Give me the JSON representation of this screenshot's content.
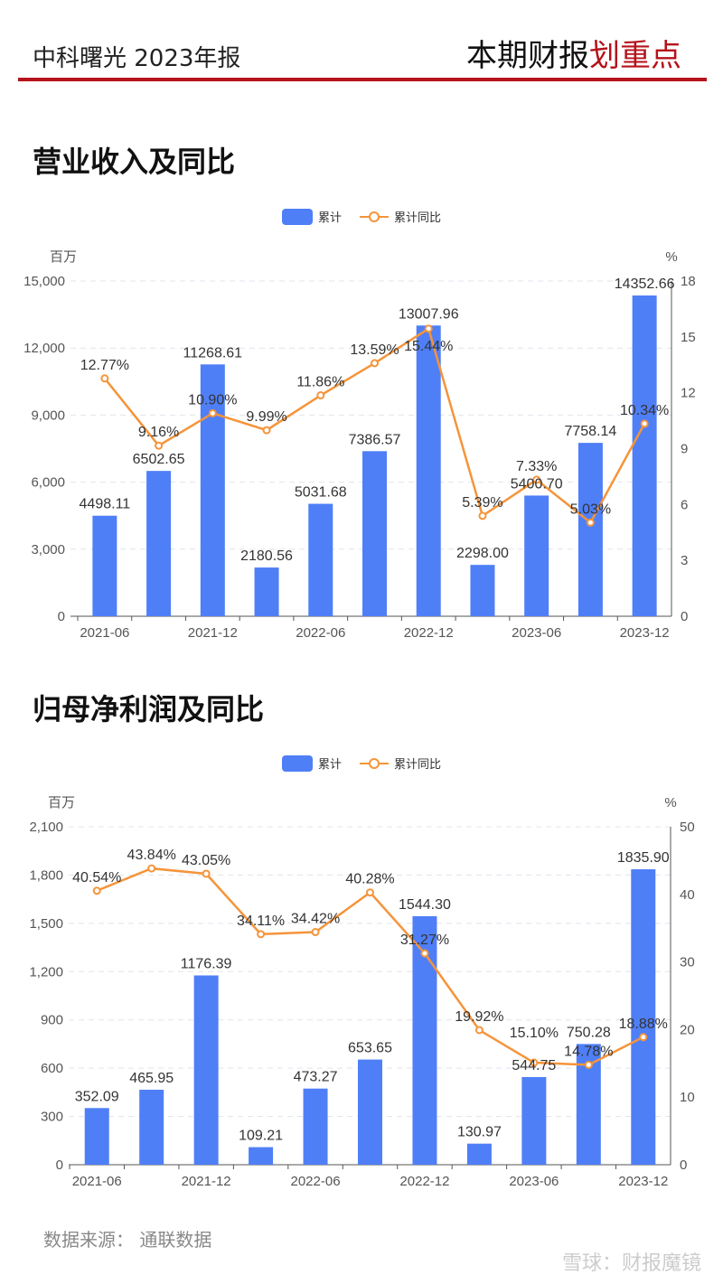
{
  "header": {
    "left_title": "中科曙光 2023年报",
    "right_title_main": "本期财报",
    "right_title_highlight": "划重点"
  },
  "sections": [
    {
      "title": "营业收入及同比"
    },
    {
      "title": "归母净利润及同比"
    }
  ],
  "footer": {
    "source": "数据来源： 通联数据",
    "watermark": "雪球：财报魔镜"
  },
  "colors": {
    "bar": "#4f7ff7",
    "line": "#f5943a",
    "accent": "#b5121b"
  },
  "chart_data": [
    {
      "type": "bar+line",
      "legend": [
        "累计",
        "累计同比"
      ],
      "legend_position": "top-center",
      "ylabel_left": "百万",
      "ylabel_right": "%",
      "categories": [
        "2021-06",
        "",
        "2021-12",
        "",
        "2022-06",
        "",
        "2022-12",
        "",
        "2023-06",
        "",
        "2023-12"
      ],
      "ylim_left": [
        0,
        15000
      ],
      "yticks_left": [
        "0",
        "3,000",
        "6,000",
        "9,000",
        "12,000",
        "15,000"
      ],
      "ylim_right": [
        0,
        18
      ],
      "yticks_right": [
        "0",
        "3",
        "6",
        "9",
        "12",
        "15",
        "18"
      ],
      "bars": {
        "name": "累计",
        "values": [
          4498.11,
          6502.65,
          11268.61,
          2180.56,
          5031.68,
          7386.57,
          13007.96,
          2298.0,
          5400.7,
          7758.14,
          14352.66
        ]
      },
      "line": {
        "name": "累计同比",
        "values": [
          12.77,
          9.16,
          10.9,
          9.99,
          11.86,
          13.59,
          15.44,
          5.39,
          7.33,
          5.03,
          10.34
        ]
      }
    },
    {
      "type": "bar+line",
      "legend": [
        "累计",
        "累计同比"
      ],
      "legend_position": "top-center",
      "ylabel_left": "百万",
      "ylabel_right": "%",
      "categories": [
        "2021-06",
        "",
        "2021-12",
        "",
        "2022-06",
        "",
        "2022-12",
        "",
        "2023-06",
        "",
        "2023-12"
      ],
      "ylim_left": [
        0,
        2100
      ],
      "yticks_left": [
        "0",
        "300",
        "600",
        "900",
        "1,200",
        "1,500",
        "1,800",
        "2,100"
      ],
      "ylim_right": [
        0,
        50
      ],
      "yticks_right": [
        "0",
        "10",
        "20",
        "30",
        "40",
        "50"
      ],
      "bars": {
        "name": "累计",
        "values": [
          352.09,
          465.95,
          1176.39,
          109.21,
          473.27,
          653.65,
          1544.3,
          130.97,
          544.75,
          750.28,
          1835.9
        ]
      },
      "line": {
        "name": "累计同比",
        "values": [
          40.54,
          43.84,
          43.05,
          34.11,
          34.42,
          40.28,
          31.27,
          19.92,
          15.1,
          14.78,
          18.88
        ]
      }
    }
  ]
}
